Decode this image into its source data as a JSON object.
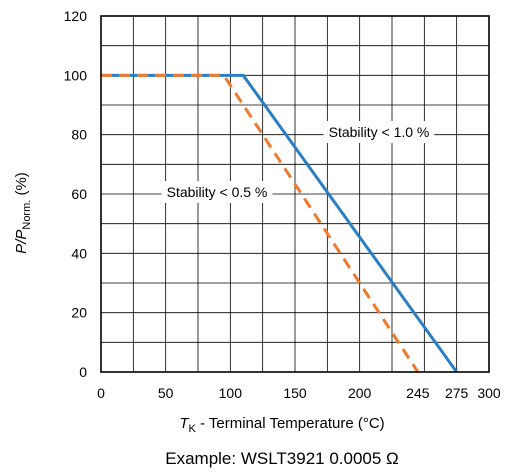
{
  "chart_data": {
    "type": "line",
    "xlim": [
      0,
      300
    ],
    "ylim": [
      0,
      120
    ],
    "x_ticks": [
      0,
      50,
      100,
      150,
      200,
      245,
      275,
      300
    ],
    "y_ticks": [
      0,
      20,
      40,
      60,
      80,
      100,
      120
    ],
    "grid": true,
    "series": [
      {
        "color": "#2a7fc4",
        "style": "solid",
        "points": [
          [
            0,
            100
          ],
          [
            110,
            100
          ],
          [
            275,
            0
          ]
        ]
      },
      {
        "color": "#f07a2c",
        "style": "dashed",
        "points": [
          [
            0,
            100
          ],
          [
            95,
            100
          ],
          [
            245,
            0
          ]
        ]
      }
    ],
    "annotations": [
      "Stability < 1.0 %",
      "Stability < 0.5 %"
    ],
    "ylabel": {
      "main": "P/P",
      "sub": "Norm.",
      "unit": " (%)"
    },
    "xlabel": {
      "main": "T",
      "sub": "K",
      "rest": " - Terminal Temperature (°C)"
    },
    "caption": "Example: WSLT3921 0.0005 Ω"
  }
}
